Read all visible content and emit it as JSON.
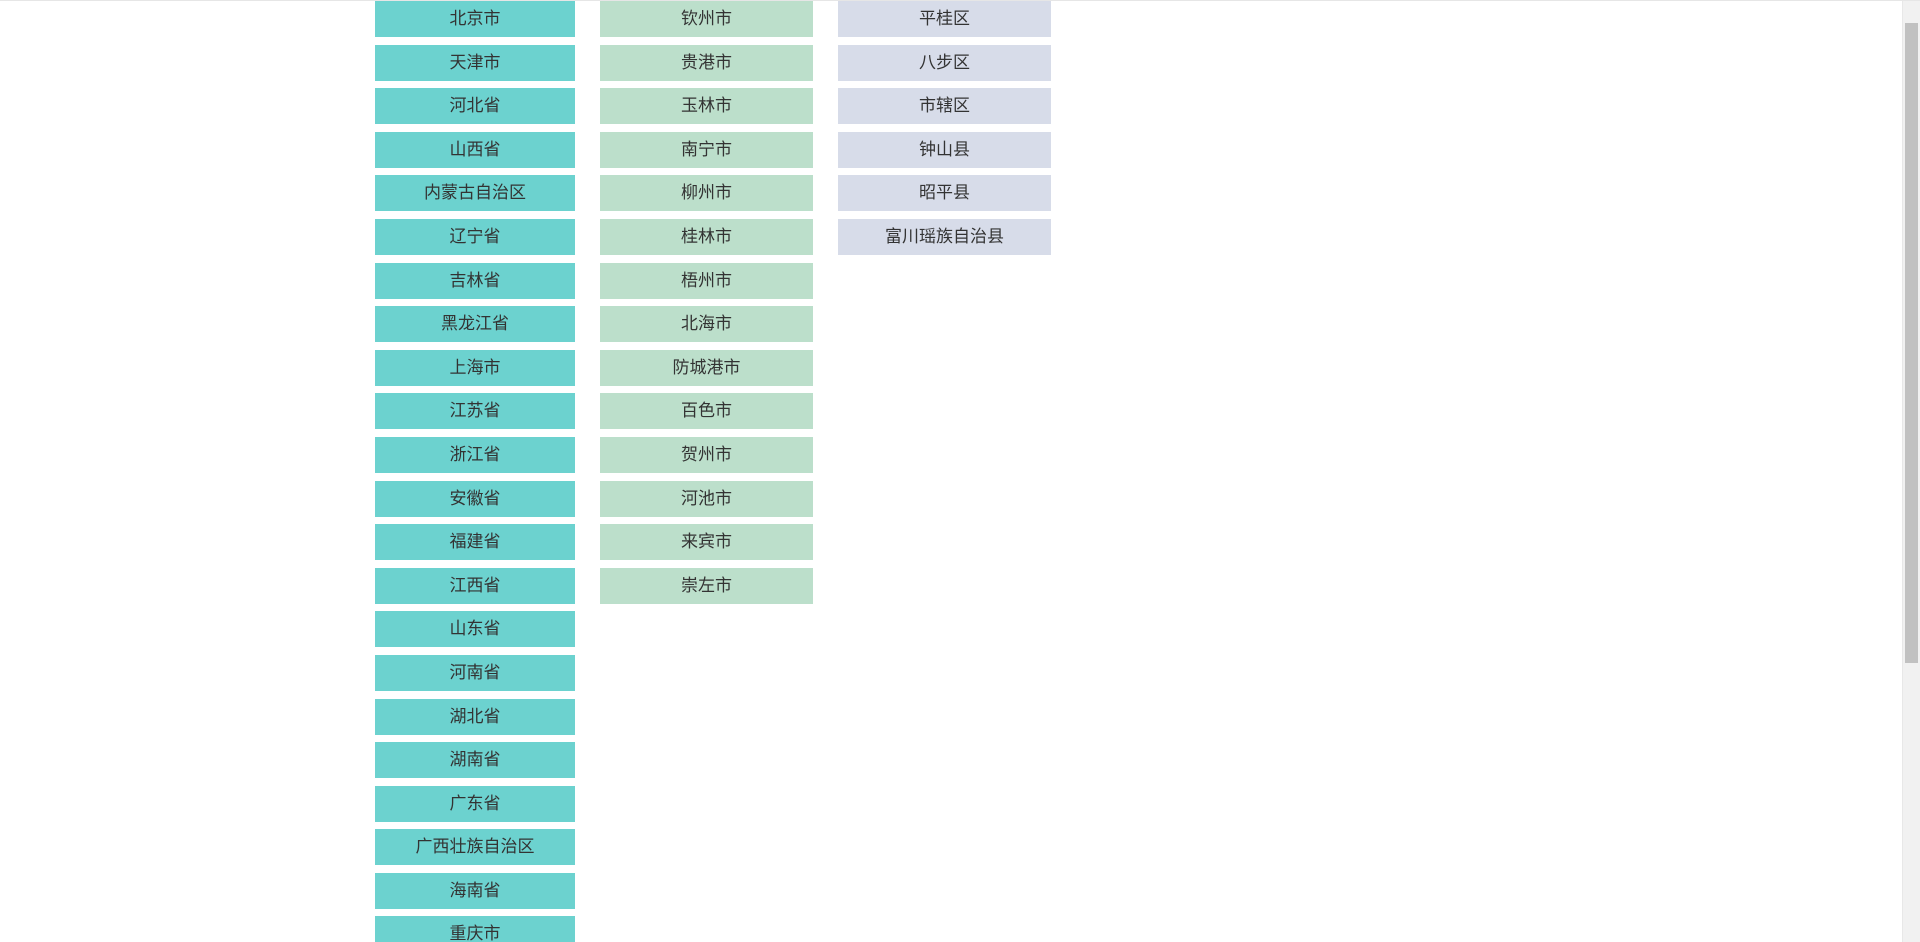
{
  "provinces": [
    {
      "label": "北京市"
    },
    {
      "label": "天津市"
    },
    {
      "label": "河北省"
    },
    {
      "label": "山西省"
    },
    {
      "label": "内蒙古自治区"
    },
    {
      "label": "辽宁省"
    },
    {
      "label": "吉林省"
    },
    {
      "label": "黑龙江省"
    },
    {
      "label": "上海市"
    },
    {
      "label": "江苏省"
    },
    {
      "label": "浙江省"
    },
    {
      "label": "安徽省"
    },
    {
      "label": "福建省"
    },
    {
      "label": "江西省"
    },
    {
      "label": "山东省"
    },
    {
      "label": "河南省"
    },
    {
      "label": "湖北省"
    },
    {
      "label": "湖南省"
    },
    {
      "label": "广东省"
    },
    {
      "label": "广西壮族自治区",
      "selected": true
    },
    {
      "label": "海南省"
    },
    {
      "label": "重庆市"
    }
  ],
  "cities": [
    {
      "label": "钦州市"
    },
    {
      "label": "贵港市"
    },
    {
      "label": "玉林市"
    },
    {
      "label": "南宁市"
    },
    {
      "label": "柳州市"
    },
    {
      "label": "桂林市"
    },
    {
      "label": "梧州市"
    },
    {
      "label": "北海市"
    },
    {
      "label": "防城港市"
    },
    {
      "label": "百色市"
    },
    {
      "label": "贺州市",
      "selected": true
    },
    {
      "label": "河池市"
    },
    {
      "label": "来宾市"
    },
    {
      "label": "崇左市"
    }
  ],
  "districts": [
    {
      "label": "平桂区"
    },
    {
      "label": "八步区"
    },
    {
      "label": "市辖区"
    },
    {
      "label": "钟山县"
    },
    {
      "label": "昭平县"
    },
    {
      "label": "富川瑶族自治县",
      "selected": true
    }
  ],
  "colors": {
    "province_bg": "#6cd2cf",
    "city_bg": "#bcdfcb",
    "district_bg": "#d7dce9",
    "selected_bg": "#ff6348",
    "text": "#333333"
  }
}
